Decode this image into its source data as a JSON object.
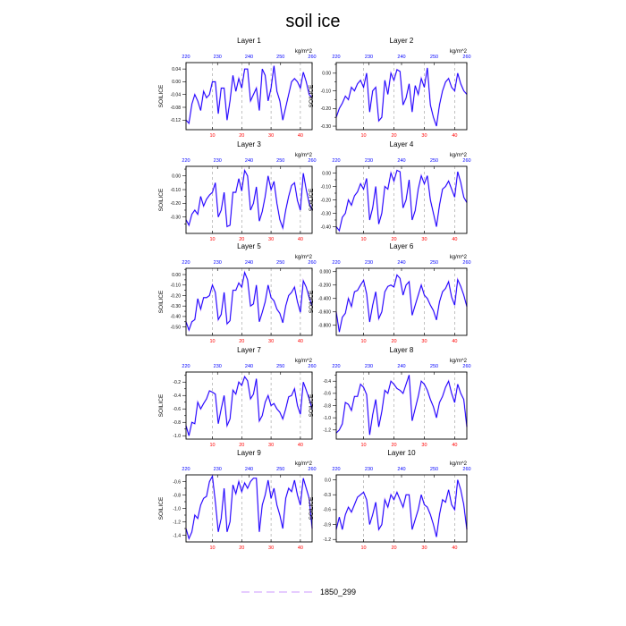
{
  "title": "soil ice",
  "units": "kg/m^2",
  "legend_label": "1850_299",
  "colors": {
    "line_blue": "#0000ff",
    "line_purple": "#9b30ff",
    "bottom_ticks": "#ff0000",
    "top_ticks": "#0000ff",
    "frame": "#000000",
    "legend_line": "#cc99ff"
  },
  "chart_data": [
    {
      "type": "line",
      "title": "Layer 1",
      "ylabel": "SOILICE",
      "xlim": [
        1,
        44
      ],
      "ylim": [
        -0.15,
        0.06
      ],
      "xticks": [
        10,
        20,
        30,
        40
      ],
      "yticks": [
        -0.12,
        -0.08,
        -0.04,
        0.0,
        0.04
      ],
      "yticklabels": [
        "-0.12",
        "-0.08",
        "-0.04",
        "0.00",
        "0.04"
      ],
      "top_ticks": [
        "220",
        "230",
        "240",
        "250",
        "260"
      ],
      "grid": "dashed vertical at bottom ticks",
      "series": [
        {
          "values": [
            -0.12,
            -0.13,
            -0.07,
            -0.04,
            -0.06,
            -0.09,
            -0.03,
            -0.05,
            -0.04,
            0.0,
            0.0,
            -0.1,
            -0.02,
            -0.02,
            -0.12,
            -0.06,
            0.02,
            -0.03,
            0.01,
            -0.02,
            0.04,
            0.04,
            -0.06,
            -0.04,
            -0.02,
            -0.09,
            0.04,
            0.02,
            -0.06,
            -0.02,
            0.05,
            -0.03,
            -0.06,
            -0.12,
            -0.08,
            -0.04,
            0.0,
            0.01,
            0.0,
            -0.02,
            0.03,
            0.0,
            -0.04,
            -0.05
          ]
        }
      ]
    },
    {
      "type": "line",
      "title": "Layer 2",
      "ylabel": "SOILICE",
      "xlim": [
        1,
        44
      ],
      "ylim": [
        -0.32,
        0.06
      ],
      "xticks": [
        10,
        20,
        30,
        40
      ],
      "yticks": [
        -0.3,
        -0.25,
        -0.2,
        -0.15,
        -0.1,
        -0.05,
        0.0,
        0.05
      ],
      "yticklabels": [
        "-0.30",
        "",
        "-0.20",
        "",
        "-0.10",
        "",
        "0.00",
        ""
      ],
      "top_ticks": [
        "220",
        "230",
        "240",
        "250",
        "260"
      ],
      "grid": "dashed vertical at bottom ticks",
      "series": [
        {
          "values": [
            -0.25,
            -0.2,
            -0.17,
            -0.13,
            -0.15,
            -0.08,
            -0.1,
            -0.06,
            -0.04,
            -0.08,
            0.0,
            -0.22,
            -0.1,
            -0.08,
            -0.27,
            -0.25,
            -0.04,
            -0.12,
            0.0,
            -0.04,
            0.02,
            0.01,
            -0.18,
            -0.14,
            -0.06,
            -0.22,
            -0.07,
            -0.12,
            -0.03,
            -0.08,
            0.03,
            -0.18,
            -0.25,
            -0.3,
            -0.18,
            -0.1,
            -0.05,
            -0.03,
            -0.08,
            -0.1,
            0.0,
            -0.06,
            -0.1,
            -0.12
          ]
        }
      ]
    },
    {
      "type": "line",
      "title": "Layer 3",
      "ylabel": "SOILICE",
      "xlim": [
        1,
        44
      ],
      "ylim": [
        -0.42,
        0.07
      ],
      "xticks": [
        10,
        20,
        30,
        40
      ],
      "yticks": [
        -0.35,
        -0.3,
        -0.25,
        -0.2,
        -0.15,
        -0.1,
        -0.05,
        0.0,
        0.05
      ],
      "yticklabels": [
        "",
        "-0.30",
        "",
        "-0.20",
        "",
        "-0.10",
        "",
        "0.00",
        ""
      ],
      "top_ticks": [
        "220",
        "230",
        "240",
        "250",
        "260"
      ],
      "grid": "dashed vertical at bottom ticks",
      "series": [
        {
          "values": [
            -0.32,
            -0.36,
            -0.28,
            -0.25,
            -0.28,
            -0.15,
            -0.22,
            -0.17,
            -0.14,
            -0.12,
            -0.05,
            -0.3,
            -0.25,
            -0.12,
            -0.37,
            -0.36,
            -0.12,
            -0.12,
            -0.02,
            -0.11,
            0.04,
            0.0,
            -0.25,
            -0.2,
            -0.08,
            -0.33,
            -0.26,
            -0.15,
            0.0,
            -0.1,
            -0.04,
            -0.2,
            -0.32,
            -0.38,
            -0.25,
            -0.15,
            -0.07,
            -0.05,
            -0.18,
            -0.25,
            0.02,
            -0.1,
            -0.2,
            -0.25
          ]
        }
      ]
    },
    {
      "type": "line",
      "title": "Layer 4",
      "ylabel": "SOILICE",
      "xlim": [
        1,
        44
      ],
      "ylim": [
        -0.45,
        0.05
      ],
      "xticks": [
        10,
        20,
        30,
        40
      ],
      "yticks": [
        -0.4,
        -0.35,
        -0.3,
        -0.25,
        -0.2,
        -0.15,
        -0.1,
        -0.05,
        0.0
      ],
      "yticklabels": [
        "-0.40",
        "",
        "-0.30",
        "",
        "-0.20",
        "",
        "-0.10",
        "",
        "0.00"
      ],
      "top_ticks": [
        "220",
        "230",
        "240",
        "250",
        "260"
      ],
      "grid": "dashed vertical at bottom ticks",
      "series": [
        {
          "values": [
            -0.4,
            -0.43,
            -0.33,
            -0.3,
            -0.2,
            -0.24,
            -0.17,
            -0.14,
            -0.08,
            -0.12,
            -0.04,
            -0.35,
            -0.26,
            -0.1,
            -0.38,
            -0.3,
            -0.1,
            -0.12,
            0.0,
            -0.06,
            0.02,
            0.01,
            -0.26,
            -0.2,
            -0.05,
            -0.35,
            -0.28,
            -0.12,
            -0.02,
            -0.08,
            -0.02,
            -0.2,
            -0.3,
            -0.4,
            -0.24,
            -0.12,
            -0.1,
            -0.06,
            -0.12,
            -0.18,
            0.01,
            -0.07,
            -0.18,
            -0.22
          ]
        }
      ]
    },
    {
      "type": "line",
      "title": "Layer 5",
      "ylabel": "SOILICE",
      "xlim": [
        1,
        44
      ],
      "ylim": [
        -0.58,
        0.06
      ],
      "xticks": [
        10,
        20,
        30,
        40
      ],
      "yticks": [
        -0.5,
        -0.45,
        -0.4,
        -0.35,
        -0.3,
        -0.25,
        -0.2,
        -0.15,
        -0.1,
        -0.05,
        0.0,
        0.05
      ],
      "yticklabels": [
        "-0.50",
        "",
        "-0.40",
        "",
        "-0.30",
        "",
        "-0.20",
        "",
        "-0.10",
        "",
        "0.00",
        ""
      ],
      "top_ticks": [
        "220",
        "230",
        "240",
        "250",
        "260"
      ],
      "grid": "dashed vertical at bottom ticks",
      "series": [
        {
          "values": [
            -0.45,
            -0.53,
            -0.45,
            -0.43,
            -0.23,
            -0.33,
            -0.22,
            -0.22,
            -0.2,
            -0.1,
            -0.17,
            -0.43,
            -0.38,
            -0.17,
            -0.47,
            -0.44,
            -0.15,
            -0.15,
            -0.08,
            -0.12,
            0.02,
            -0.05,
            -0.3,
            -0.28,
            -0.1,
            -0.45,
            -0.36,
            -0.26,
            -0.1,
            -0.22,
            -0.25,
            -0.33,
            -0.37,
            -0.46,
            -0.3,
            -0.2,
            -0.17,
            -0.12,
            -0.26,
            -0.36,
            -0.06,
            -0.12,
            -0.22,
            -0.3
          ]
        }
      ]
    },
    {
      "type": "line",
      "title": "Layer 6",
      "ylabel": "SOILICE",
      "xlim": [
        1,
        44
      ],
      "ylim": [
        -0.95,
        0.05
      ],
      "xticks": [
        10,
        20,
        30,
        40
      ],
      "yticks": [
        -0.8,
        -0.6,
        -0.4,
        -0.2,
        0.0
      ],
      "yticklabels": [
        "-0.800",
        "-0.600",
        "-0.400",
        "-0.200",
        "0.000"
      ],
      "top_ticks": [
        "220",
        "230",
        "240",
        "250",
        "260"
      ],
      "grid": "dashed vertical at bottom ticks",
      "series": [
        {
          "values": [
            -0.6,
            -0.9,
            -0.68,
            -0.62,
            -0.4,
            -0.52,
            -0.3,
            -0.28,
            -0.2,
            -0.13,
            -0.33,
            -0.75,
            -0.5,
            -0.3,
            -0.7,
            -0.6,
            -0.3,
            -0.22,
            -0.2,
            -0.23,
            -0.05,
            -0.1,
            -0.35,
            -0.2,
            -0.15,
            -0.65,
            -0.5,
            -0.35,
            -0.2,
            -0.35,
            -0.4,
            -0.5,
            -0.58,
            -0.72,
            -0.45,
            -0.3,
            -0.25,
            -0.15,
            -0.38,
            -0.5,
            -0.12,
            -0.22,
            -0.35,
            -0.52
          ]
        }
      ]
    },
    {
      "type": "line",
      "title": "Layer 7",
      "ylabel": "SOILICE",
      "xlim": [
        1,
        44
      ],
      "ylim": [
        -1.05,
        -0.05
      ],
      "xticks": [
        10,
        20,
        30,
        40
      ],
      "yticks": [
        -1.0,
        -0.9,
        -0.8,
        -0.7,
        -0.6,
        -0.5,
        -0.4,
        -0.3,
        -0.2,
        -0.1
      ],
      "yticklabels": [
        "-1.0",
        "",
        "-0.8",
        "",
        "-0.6",
        "",
        "-0.4",
        "",
        "-0.2",
        ""
      ],
      "top_ticks": [
        "220",
        "230",
        "240",
        "250",
        "260"
      ],
      "grid": "dashed vertical at bottom ticks",
      "series": [
        {
          "values": [
            -0.85,
            -1.0,
            -0.8,
            -0.82,
            -0.5,
            -0.6,
            -0.52,
            -0.45,
            -0.33,
            -0.35,
            -0.38,
            -0.82,
            -0.6,
            -0.4,
            -0.85,
            -0.75,
            -0.32,
            -0.38,
            -0.2,
            -0.25,
            -0.12,
            -0.18,
            -0.45,
            -0.38,
            -0.15,
            -0.78,
            -0.7,
            -0.5,
            -0.4,
            -0.55,
            -0.52,
            -0.6,
            -0.65,
            -0.75,
            -0.6,
            -0.42,
            -0.4,
            -0.3,
            -0.55,
            -0.68,
            -0.2,
            -0.32,
            -0.45,
            -0.6
          ]
        }
      ]
    },
    {
      "type": "line",
      "title": "Layer 8",
      "ylabel": "SOILICE",
      "xlim": [
        1,
        44
      ],
      "ylim": [
        -1.35,
        -0.25
      ],
      "xticks": [
        10,
        20,
        30,
        40
      ],
      "yticks": [
        -1.2,
        -1.1,
        -1.0,
        -0.9,
        -0.8,
        -0.7,
        -0.6,
        -0.5,
        -0.4,
        -0.3
      ],
      "yticklabels": [
        "-1.2",
        "",
        "-1.0",
        "",
        "-0.8",
        "",
        "-0.6",
        "",
        "-0.4",
        ""
      ],
      "top_ticks": [
        "220",
        "230",
        "240",
        "250",
        "260"
      ],
      "grid": "dashed vertical at bottom ticks",
      "series": [
        {
          "values": [
            -1.25,
            -1.2,
            -1.1,
            -0.75,
            -0.78,
            -0.88,
            -0.65,
            -0.65,
            -0.45,
            -0.5,
            -0.62,
            -1.28,
            -0.95,
            -0.7,
            -1.15,
            -0.9,
            -0.55,
            -0.6,
            -0.4,
            -0.45,
            -0.52,
            -0.55,
            -0.6,
            -0.45,
            -0.3,
            -1.05,
            -0.85,
            -0.65,
            -0.4,
            -0.45,
            -0.55,
            -0.7,
            -0.82,
            -1.0,
            -0.75,
            -0.65,
            -0.5,
            -0.4,
            -0.6,
            -0.75,
            -0.45,
            -0.6,
            -0.7,
            -1.15
          ]
        }
      ]
    },
    {
      "type": "line",
      "title": "Layer 9",
      "ylabel": "SOILICE",
      "xlim": [
        1,
        44
      ],
      "ylim": [
        -1.5,
        -0.5
      ],
      "xticks": [
        10,
        20,
        30,
        40
      ],
      "yticks": [
        -1.4,
        -1.3,
        -1.2,
        -1.1,
        -1.0,
        -0.9,
        -0.8,
        -0.7,
        -0.6
      ],
      "yticklabels": [
        "-1.4",
        "",
        "-1.2",
        "",
        "-1.0",
        "",
        "-0.8",
        "",
        "-0.6"
      ],
      "top_ticks": [
        "220",
        "230",
        "240",
        "250",
        "260"
      ],
      "grid": "dashed vertical at bottom ticks",
      "series": [
        {
          "values": [
            -1.3,
            -1.45,
            -1.35,
            -1.1,
            -1.15,
            -0.95,
            -0.85,
            -0.82,
            -0.6,
            -0.52,
            -0.9,
            -1.35,
            -1.15,
            -0.7,
            -1.35,
            -1.2,
            -0.65,
            -0.78,
            -0.6,
            -0.75,
            -0.62,
            -0.7,
            -0.6,
            -0.55,
            -0.55,
            -1.35,
            -0.95,
            -0.8,
            -0.58,
            -0.85,
            -0.7,
            -0.95,
            -1.1,
            -1.3,
            -0.85,
            -0.7,
            -0.75,
            -0.58,
            -0.8,
            -0.95,
            -0.55,
            -0.7,
            -0.85,
            -1.3
          ]
        }
      ]
    },
    {
      "type": "line",
      "title": "Layer 10",
      "ylabel": "SOILICE",
      "xlim": [
        1,
        44
      ],
      "ylim": [
        -1.25,
        0.1
      ],
      "xticks": [
        10,
        20,
        30,
        40
      ],
      "yticks": [
        -1.2,
        -0.9,
        -0.6,
        -0.3,
        0.0
      ],
      "yticklabels": [
        "-1.2",
        "-0.9",
        "-0.6",
        "-0.3",
        "0.0"
      ],
      "top_ticks": [
        "220",
        "230",
        "240",
        "250",
        "260"
      ],
      "grid": "dashed vertical at bottom ticks",
      "series": [
        {
          "values": [
            -1.0,
            -0.75,
            -1.0,
            -0.7,
            -0.55,
            -0.65,
            -0.5,
            -0.35,
            -0.3,
            -0.25,
            -0.4,
            -0.9,
            -0.7,
            -0.45,
            -1.0,
            -0.9,
            -0.4,
            -0.55,
            -0.3,
            -0.4,
            -0.25,
            -0.4,
            -0.55,
            -0.3,
            -0.3,
            -1.0,
            -0.8,
            -0.6,
            -0.3,
            -0.5,
            -0.55,
            -0.7,
            -0.9,
            -1.15,
            -0.7,
            -0.4,
            -0.45,
            -0.2,
            -0.5,
            -0.6,
            0.0,
            -0.2,
            -0.5,
            -1.0
          ]
        }
      ]
    }
  ]
}
